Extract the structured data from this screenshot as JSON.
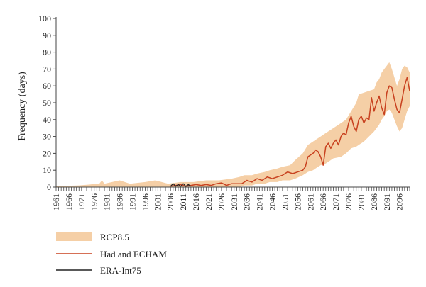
{
  "chart_data": {
    "type": "line",
    "title": "",
    "xlabel": "",
    "ylabel": "Frequency (days)",
    "ylim": [
      0,
      100
    ],
    "yticks": [
      0,
      10,
      20,
      30,
      40,
      50,
      60,
      70,
      80,
      90,
      100
    ],
    "xlim": [
      1961,
      2100
    ],
    "xticks": [
      1961,
      1966,
      1971,
      1976,
      1981,
      1986,
      1991,
      1996,
      2001,
      2006,
      2011,
      2016,
      2021,
      2026,
      2031,
      2036,
      2041,
      2046,
      2051,
      2056,
      2061,
      2066,
      2071,
      2076,
      2081,
      2086,
      2091,
      2096
    ],
    "grid": false,
    "legend": "bottom-left",
    "colors": {
      "band": "#f5cfa6",
      "line": "#c8411f",
      "obs": "#222222",
      "axis": "#444444"
    },
    "series": [
      {
        "name": "RCP8.5",
        "kind": "band",
        "x": [
          1961,
          1970,
          1978,
          1979,
          1980,
          1983,
          1986,
          1990,
          1996,
          2000,
          2005,
          2010,
          2015,
          2020,
          2025,
          2030,
          2033,
          2035,
          2038,
          2040,
          2043,
          2045,
          2048,
          2050,
          2053,
          2055,
          2058,
          2060,
          2062,
          2063,
          2065,
          2067,
          2070,
          2073,
          2075,
          2077,
          2079,
          2080,
          2082,
          2084,
          2086,
          2087,
          2088,
          2089,
          2090,
          2091,
          2092,
          2093,
          2094,
          2095,
          2096,
          2097,
          2098,
          2099,
          2100
        ],
        "low": [
          0,
          0,
          0,
          0,
          0,
          0,
          0,
          0,
          0,
          0,
          0,
          0,
          0,
          0,
          0,
          0,
          0,
          1,
          1,
          2,
          2,
          3,
          3,
          4,
          4,
          5,
          7,
          9,
          10,
          11,
          13,
          14,
          17,
          18,
          20,
          23,
          24,
          25,
          27,
          30,
          33,
          35,
          37,
          40,
          42,
          45,
          46,
          44,
          40,
          36,
          33,
          35,
          40,
          45,
          48
        ],
        "high": [
          0.5,
          1,
          2,
          4,
          2,
          3,
          4,
          2,
          3,
          4,
          2,
          3,
          3,
          4,
          4,
          5,
          6,
          7,
          7,
          8,
          9,
          10,
          11,
          12,
          13,
          16,
          20,
          25,
          27,
          28,
          30,
          32,
          35,
          38,
          40,
          45,
          50,
          55,
          56,
          57,
          58,
          62,
          64,
          68,
          70,
          72,
          74,
          70,
          65,
          60,
          64,
          70,
          72,
          71,
          68
        ]
      },
      {
        "name": "Had and ECHAM",
        "kind": "line",
        "x": [
          2006,
          2008,
          2010,
          2012,
          2014,
          2016,
          2018,
          2020,
          2022,
          2024,
          2026,
          2028,
          2030,
          2032,
          2034,
          2036,
          2038,
          2040,
          2042,
          2044,
          2046,
          2048,
          2050,
          2052,
          2054,
          2056,
          2058,
          2059,
          2060,
          2061,
          2062,
          2063,
          2064,
          2065,
          2066,
          2067,
          2068,
          2069,
          2070,
          2071,
          2072,
          2073,
          2074,
          2075,
          2076,
          2077,
          2078,
          2079,
          2080,
          2081,
          2082,
          2083,
          2084,
          2085,
          2086,
          2087,
          2088,
          2089,
          2090,
          2091,
          2092,
          2093,
          2094,
          2095,
          2096,
          2097,
          2098,
          2099,
          2100
        ],
        "y": [
          0.5,
          1,
          1.5,
          0.5,
          1,
          1.5,
          1,
          1.5,
          1,
          2,
          2.5,
          1,
          2,
          2,
          2,
          4,
          3,
          5,
          4,
          6,
          5,
          6,
          7,
          9,
          8,
          9,
          10,
          12,
          18,
          19,
          20,
          22,
          21,
          18,
          13,
          24,
          26,
          23,
          26,
          28,
          25,
          30,
          32,
          31,
          38,
          42,
          36,
          33,
          40,
          42,
          38,
          41,
          40,
          53,
          45,
          50,
          54,
          47,
          43,
          56,
          60,
          59,
          52,
          46,
          44,
          52,
          60,
          65,
          57
        ]
      },
      {
        "name": "ERA-Int75",
        "kind": "line",
        "x": [
          2006,
          2007,
          2008,
          2009,
          2010,
          2011,
          2012,
          2013,
          2014
        ],
        "y": [
          0.5,
          2,
          0.5,
          1.5,
          0.5,
          2,
          0.5,
          1.5,
          0.5
        ]
      }
    ]
  }
}
